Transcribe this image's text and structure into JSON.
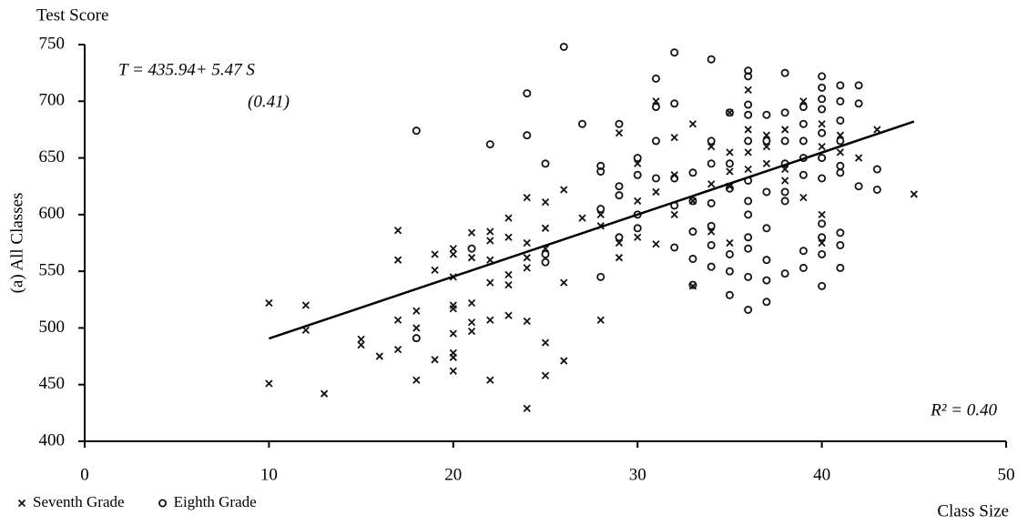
{
  "chart_data": {
    "type": "scatter",
    "y_title": "Test Score",
    "y_label": "(a) All Classes",
    "x_label": "Class Size",
    "annotations": [
      "T = 435.94+ 5.47 S",
      "(0.41)",
      "R² = 0.40"
    ],
    "xlim": [
      0,
      50
    ],
    "xticks": [
      0,
      10,
      20,
      30,
      40,
      50
    ],
    "ylim": [
      400,
      750
    ],
    "yticks": [
      400,
      450,
      500,
      550,
      600,
      650,
      700,
      750
    ],
    "grid": false,
    "legend": "bottom-left",
    "series": [
      {
        "name": "Seventh Grade",
        "marker": "x",
        "color": "#111111",
        "x": [
          10,
          10,
          12,
          12,
          13,
          15,
          15,
          16,
          17,
          17,
          17,
          17,
          18,
          18,
          18,
          19,
          19,
          19,
          20,
          20,
          20,
          20,
          20,
          20,
          20,
          20,
          20,
          21,
          21,
          21,
          21,
          21,
          22,
          22,
          22,
          22,
          22,
          22,
          23,
          23,
          23,
          23,
          23,
          24,
          24,
          24,
          24,
          24,
          24,
          25,
          25,
          25,
          25,
          25,
          26,
          26,
          26,
          27,
          28,
          28,
          28,
          29,
          29,
          29,
          30,
          30,
          30,
          31,
          31,
          31,
          32,
          32,
          32,
          33,
          33,
          33,
          34,
          34,
          34,
          35,
          35,
          35,
          35,
          35,
          36,
          36,
          36,
          36,
          37,
          37,
          37,
          38,
          38,
          38,
          39,
          39,
          40,
          40,
          40,
          40,
          41,
          41,
          42,
          43,
          45
        ],
        "values": [
          451,
          522,
          520,
          498,
          442,
          490,
          485,
          475,
          586,
          560,
          507,
          481,
          515,
          500,
          454,
          565,
          551,
          472,
          570,
          565,
          545,
          520,
          517,
          495,
          478,
          474,
          462,
          584,
          562,
          522,
          505,
          497,
          585,
          577,
          560,
          540,
          507,
          454,
          597,
          580,
          547,
          538,
          511,
          615,
          575,
          562,
          553,
          506,
          429,
          611,
          588,
          570,
          487,
          458,
          622,
          540,
          471,
          597,
          600,
          590,
          507,
          672,
          575,
          562,
          645,
          612,
          580,
          700,
          620,
          574,
          668,
          635,
          600,
          680,
          612,
          537,
          660,
          627,
          585,
          690,
          655,
          638,
          625,
          575,
          710,
          675,
          655,
          640,
          670,
          660,
          645,
          675,
          640,
          630,
          700,
          615,
          680,
          660,
          600,
          575,
          670,
          655,
          650,
          675,
          618
        ]
      },
      {
        "name": "Eighth Grade",
        "marker": "o",
        "color": "#111111",
        "x": [
          18,
          18,
          21,
          22,
          24,
          24,
          25,
          25,
          25,
          26,
          27,
          28,
          28,
          28,
          28,
          29,
          29,
          29,
          29,
          30,
          30,
          30,
          30,
          31,
          31,
          31,
          31,
          32,
          32,
          32,
          32,
          32,
          33,
          33,
          33,
          33,
          33,
          34,
          34,
          34,
          34,
          34,
          34,
          34,
          35,
          35,
          35,
          35,
          35,
          35,
          36,
          36,
          36,
          36,
          36,
          36,
          36,
          36,
          36,
          36,
          36,
          36,
          37,
          37,
          37,
          37,
          37,
          37,
          37,
          38,
          38,
          38,
          38,
          38,
          38,
          38,
          39,
          39,
          39,
          39,
          39,
          39,
          39,
          40,
          40,
          40,
          40,
          40,
          40,
          40,
          40,
          40,
          40,
          40,
          41,
          41,
          41,
          41,
          41,
          41,
          41,
          41,
          41,
          42,
          42,
          42,
          43,
          43
        ],
        "values": [
          674,
          491,
          570,
          662,
          707,
          670,
          645,
          565,
          558,
          748,
          680,
          643,
          638,
          605,
          545,
          680,
          625,
          617,
          580,
          650,
          635,
          600,
          588,
          720,
          695,
          665,
          632,
          743,
          698,
          632,
          608,
          571,
          637,
          612,
          585,
          561,
          538,
          737,
          665,
          645,
          610,
          590,
          573,
          554,
          690,
          645,
          623,
          565,
          550,
          529,
          727,
          722,
          697,
          688,
          665,
          630,
          612,
          600,
          580,
          570,
          545,
          516,
          688,
          665,
          620,
          588,
          560,
          542,
          523,
          725,
          690,
          665,
          645,
          620,
          612,
          548,
          695,
          680,
          665,
          650,
          635,
          568,
          553,
          722,
          712,
          702,
          693,
          672,
          650,
          632,
          592,
          580,
          565,
          537,
          714,
          700,
          683,
          665,
          643,
          637,
          584,
          573,
          553,
          714,
          698,
          625,
          640,
          622
        ]
      }
    ],
    "trend": {
      "x": [
        10,
        45
      ],
      "values": [
        490.64,
        682.09
      ],
      "color": "#000000"
    }
  }
}
